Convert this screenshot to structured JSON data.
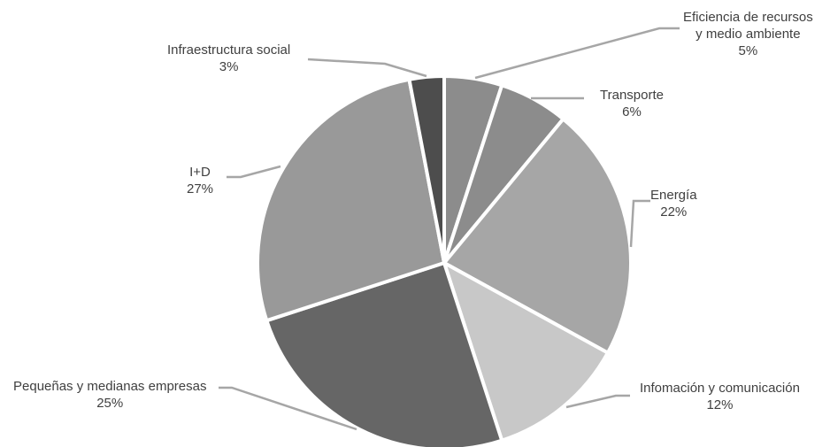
{
  "chart_data": {
    "type": "pie",
    "title": "",
    "slices": [
      {
        "label": "Eficiencia de recursos y medio ambiente",
        "label_lines": [
          "Eficiencia de recursos",
          "y medio ambiente"
        ],
        "value": 5,
        "value_label": "5%",
        "color": "#8c8c8c"
      },
      {
        "label": "Transporte",
        "label_lines": [
          "Transporte"
        ],
        "value": 6,
        "value_label": "6%",
        "color": "#8c8c8c"
      },
      {
        "label": "Energía",
        "label_lines": [
          "Energía"
        ],
        "value": 22,
        "value_label": "22%",
        "color": "#a6a6a6"
      },
      {
        "label": "Infomación y comunicación",
        "label_lines": [
          "Infomación y comunicación"
        ],
        "value": 12,
        "value_label": "12%",
        "color": "#c8c8c8"
      },
      {
        "label": "Pequeñas y medianas empresas",
        "label_lines": [
          "Pequeñas y medianas empresas"
        ],
        "value": 25,
        "value_label": "25%",
        "color": "#666666"
      },
      {
        "label": "I+D",
        "label_lines": [
          "I+D"
        ],
        "value": 27,
        "value_label": "27%",
        "color": "#999999"
      },
      {
        "label": "Infraestructura social",
        "label_lines": [
          "Infraestructura social"
        ],
        "value": 3,
        "value_label": "3%",
        "color": "#4d4d4d"
      }
    ],
    "start_angle": "12 o'clock",
    "direction": "clockwise",
    "legend": "none",
    "labels": "outside with leader lines"
  }
}
